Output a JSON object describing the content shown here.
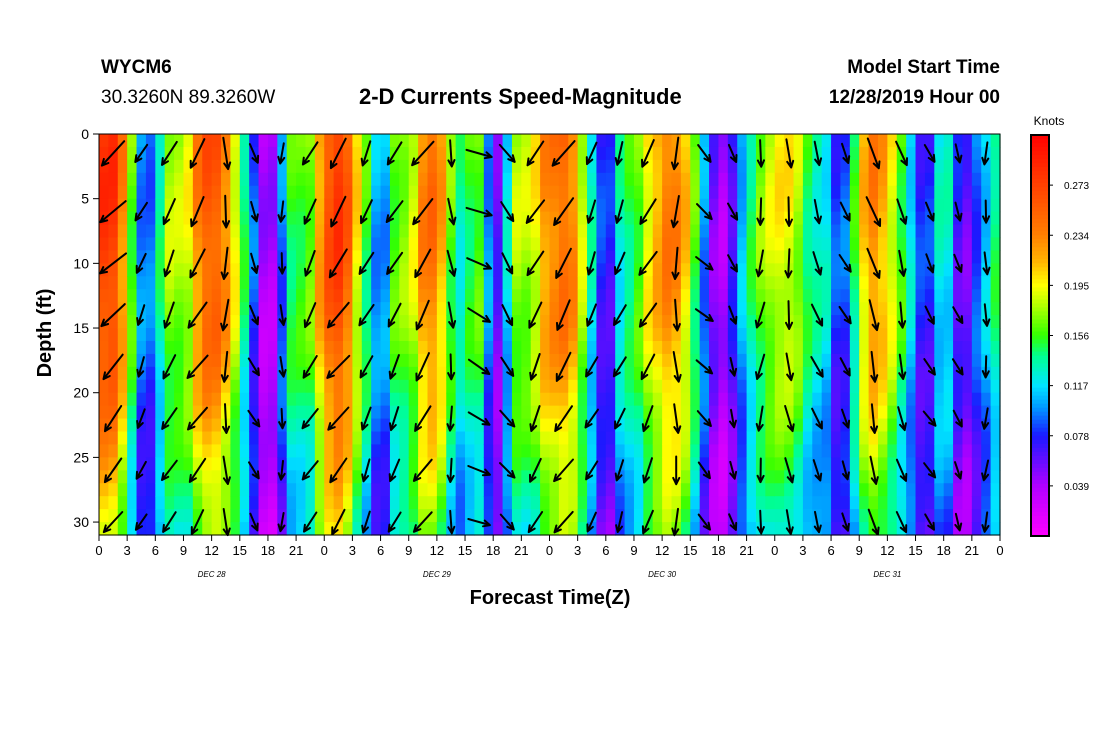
{
  "header": {
    "station": "WYCM6",
    "coords": "30.3260N 89.3260W",
    "title": "2-D Currents Speed-Magnitude",
    "model_start_label": "Model Start Time",
    "model_start_value": "12/28/2019 Hour 00"
  },
  "chart_data": {
    "type": "heatmap",
    "title": "2-D Currents Speed-Magnitude",
    "xlabel": "Forecast Time(Z)",
    "ylabel": "Depth (ft)",
    "x_tick_labels": [
      "0",
      "3",
      "6",
      "9",
      "12",
      "15",
      "18",
      "21",
      "0",
      "3",
      "6",
      "9",
      "12",
      "15",
      "18",
      "21",
      "0",
      "3",
      "6",
      "9",
      "12",
      "15",
      "18",
      "21",
      "0",
      "3",
      "6",
      "9",
      "12",
      "15",
      "18",
      "21",
      "0"
    ],
    "x_hours_range": [
      0,
      96
    ],
    "date_labels": [
      {
        "label": "DEC 28",
        "hour": 12
      },
      {
        "label": "DEC 29",
        "hour": 36
      },
      {
        "label": "DEC 30",
        "hour": 60
      },
      {
        "label": "DEC 31",
        "hour": 84
      }
    ],
    "y_ticks": [
      0,
      5,
      10,
      15,
      20,
      25,
      30
    ],
    "ylim": [
      0,
      31
    ],
    "y_inverted": true,
    "colorbar": {
      "unit": "Knots",
      "ticks": [
        0.273,
        0.234,
        0.195,
        0.156,
        0.117,
        0.078,
        0.039
      ],
      "min": 0.0,
      "max": 0.312
    },
    "speed_hour_profile": [
      [
        0,
        0.27
      ],
      [
        1,
        0.29
      ],
      [
        2,
        0.27
      ],
      [
        3,
        0.2
      ],
      [
        4,
        0.13
      ],
      [
        5,
        0.07
      ],
      [
        6,
        0.12
      ],
      [
        7,
        0.16
      ],
      [
        8,
        0.2
      ],
      [
        9,
        0.16
      ],
      [
        10,
        0.22
      ],
      [
        11,
        0.25
      ],
      [
        12,
        0.27
      ],
      [
        13,
        0.25
      ],
      [
        14,
        0.22
      ],
      [
        15,
        0.17
      ],
      [
        16,
        0.12
      ],
      [
        17,
        0.06
      ],
      [
        18,
        0.02
      ],
      [
        19,
        0.06
      ],
      [
        20,
        0.13
      ],
      [
        21,
        0.18
      ],
      [
        22,
        0.14
      ],
      [
        23,
        0.2
      ],
      [
        24,
        0.25
      ],
      [
        25,
        0.28
      ],
      [
        26,
        0.28
      ],
      [
        27,
        0.23
      ],
      [
        28,
        0.17
      ],
      [
        29,
        0.14
      ],
      [
        30,
        0.07
      ],
      [
        31,
        0.14
      ],
      [
        32,
        0.19
      ],
      [
        33,
        0.16
      ],
      [
        34,
        0.22
      ],
      [
        35,
        0.25
      ],
      [
        36,
        0.24
      ],
      [
        37,
        0.2
      ],
      [
        38,
        0.13
      ],
      [
        39,
        0.14
      ],
      [
        40,
        0.17
      ],
      [
        41,
        0.16
      ],
      [
        42,
        0.04
      ],
      [
        43,
        0.08
      ],
      [
        44,
        0.16
      ],
      [
        45,
        0.2
      ],
      [
        46,
        0.16
      ],
      [
        47,
        0.23
      ],
      [
        48,
        0.23
      ],
      [
        49,
        0.25
      ],
      [
        50,
        0.25
      ],
      [
        51,
        0.22
      ],
      [
        52,
        0.15
      ],
      [
        53,
        0.11
      ],
      [
        54,
        0.05
      ],
      [
        55,
        0.1
      ],
      [
        56,
        0.16
      ],
      [
        57,
        0.14
      ],
      [
        58,
        0.19
      ],
      [
        59,
        0.21
      ],
      [
        60,
        0.23
      ],
      [
        61,
        0.25
      ],
      [
        62,
        0.22
      ],
      [
        63,
        0.2
      ],
      [
        64,
        0.12
      ],
      [
        65,
        0.08
      ],
      [
        66,
        0.03
      ],
      [
        67,
        0.05
      ],
      [
        68,
        0.09
      ],
      [
        69,
        0.13
      ],
      [
        70,
        0.16
      ],
      [
        71,
        0.18
      ],
      [
        72,
        0.19
      ],
      [
        73,
        0.2
      ],
      [
        74,
        0.19
      ],
      [
        75,
        0.17
      ],
      [
        76,
        0.13
      ],
      [
        77,
        0.14
      ],
      [
        78,
        0.11
      ],
      [
        79,
        0.06
      ],
      [
        80,
        0.12
      ],
      [
        81,
        0.18
      ],
      [
        82,
        0.24
      ],
      [
        83,
        0.23
      ],
      [
        84,
        0.21
      ],
      [
        85,
        0.18
      ],
      [
        86,
        0.14
      ],
      [
        87,
        0.1
      ],
      [
        88,
        0.06
      ],
      [
        89,
        0.1
      ],
      [
        90,
        0.15
      ],
      [
        91,
        0.1
      ],
      [
        92,
        0.04
      ],
      [
        93,
        0.08
      ],
      [
        94,
        0.1
      ],
      [
        95,
        0.13
      ],
      [
        96,
        0.16
      ]
    ],
    "depth_factor_profile": [
      [
        0,
        1.0
      ],
      [
        5,
        1.0
      ],
      [
        10,
        0.98
      ],
      [
        15,
        0.95
      ],
      [
        20,
        0.88
      ],
      [
        25,
        0.8
      ],
      [
        31,
        0.7
      ]
    ],
    "vector_grid": {
      "hours_start": 1.5,
      "hours_step": 3,
      "hours_count": 32,
      "depths": [
        1.5,
        6,
        10,
        14,
        18,
        22,
        26,
        30
      ],
      "direction_hour_profile": [
        [
          0,
          235
        ],
        [
          3,
          210
        ],
        [
          6,
          200
        ],
        [
          9,
          215
        ],
        [
          12,
          210
        ],
        [
          15,
          150
        ],
        [
          18,
          160
        ],
        [
          21,
          200
        ],
        [
          24,
          220
        ],
        [
          27,
          210
        ],
        [
          30,
          200
        ],
        [
          33,
          215
        ],
        [
          36,
          210
        ],
        [
          39,
          140
        ],
        [
          42,
          90
        ],
        [
          45,
          200
        ],
        [
          48,
          215
        ],
        [
          51,
          210
        ],
        [
          54,
          200
        ],
        [
          57,
          205
        ],
        [
          60,
          210
        ],
        [
          63,
          150
        ],
        [
          66,
          120
        ],
        [
          69,
          200
        ],
        [
          72,
          175
        ],
        [
          75,
          170
        ],
        [
          78,
          150
        ],
        [
          81,
          160
        ],
        [
          84,
          170
        ],
        [
          87,
          160
        ],
        [
          90,
          140
        ],
        [
          93,
          175
        ],
        [
          96,
          190
        ]
      ]
    }
  }
}
